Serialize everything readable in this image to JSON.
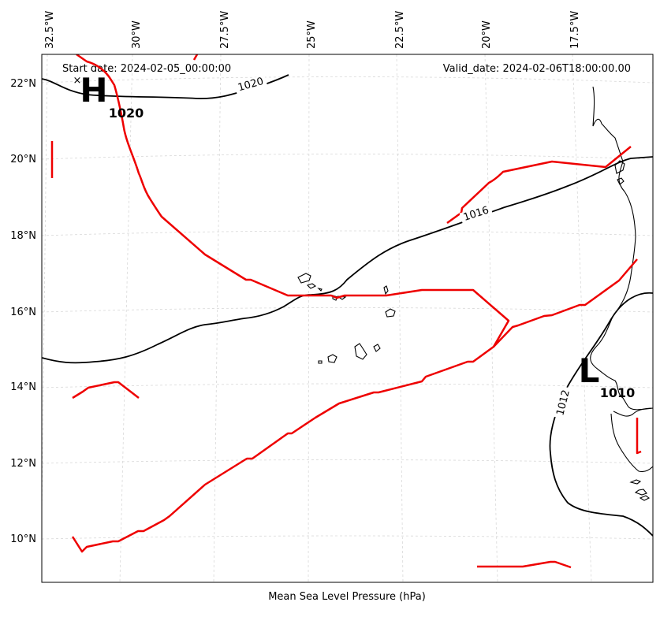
{
  "header": {
    "start_date": "Start date: 2024-02-05_00:00:00",
    "valid_date": "Valid_date: 2024-02-06T18:00:00.00"
  },
  "footer": {
    "title": "Mean Sea Level Pressure (hPa)"
  },
  "axes": {
    "longitude_labels": [
      "32.5°W",
      "30°W",
      "27.5°W",
      "25°W",
      "22.5°W",
      "20°W",
      "17.5°W"
    ],
    "latitude_labels": [
      "22°N",
      "20°N",
      "18°N",
      "16°N",
      "14°N",
      "12°N",
      "10°N"
    ]
  },
  "pressure_centers": [
    {
      "type": "high",
      "symbol": "H",
      "value": "1020",
      "mark": "×"
    },
    {
      "type": "low",
      "symbol": "L",
      "value": "1010"
    }
  ],
  "isobar_labels": [
    "1020",
    "1016",
    "1012"
  ],
  "colors": {
    "isobar": "#000000",
    "front": "#ee0000",
    "grid": "#d8d8d8",
    "coast": "#000000"
  }
}
